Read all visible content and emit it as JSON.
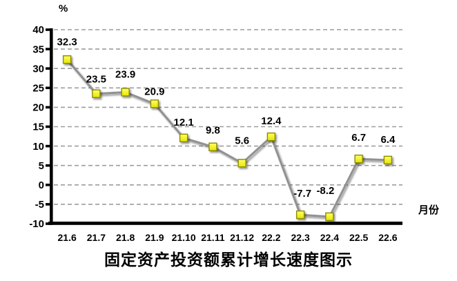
{
  "chart_data": {
    "type": "line",
    "title": "固定资产投资额累计增长速度图示",
    "ylabel": "%",
    "xlabel": "月份",
    "categories": [
      "21.6",
      "21.7",
      "21.8",
      "21.9",
      "21.10",
      "21.11",
      "21.12",
      "22.2",
      "22.3",
      "22.4",
      "22.5",
      "22.6"
    ],
    "values": [
      32.3,
      23.5,
      23.9,
      20.9,
      12.1,
      9.8,
      5.6,
      12.4,
      -7.7,
      -8.2,
      6.7,
      6.4
    ],
    "ylim": [
      -10,
      40
    ],
    "ytick_step": 5,
    "yticks": [
      40,
      35,
      30,
      25,
      20,
      15,
      10,
      5,
      0,
      -5,
      -10
    ],
    "grid": "horizontal-dashed",
    "legend": "none",
    "data_labels": "above-points",
    "colors": {
      "line": "#919191",
      "marker_fill": "#F2F200",
      "marker_border": "#8A8A00",
      "grid": "#9C9C9C",
      "axis": "#000000",
      "text": "#000000"
    }
  }
}
